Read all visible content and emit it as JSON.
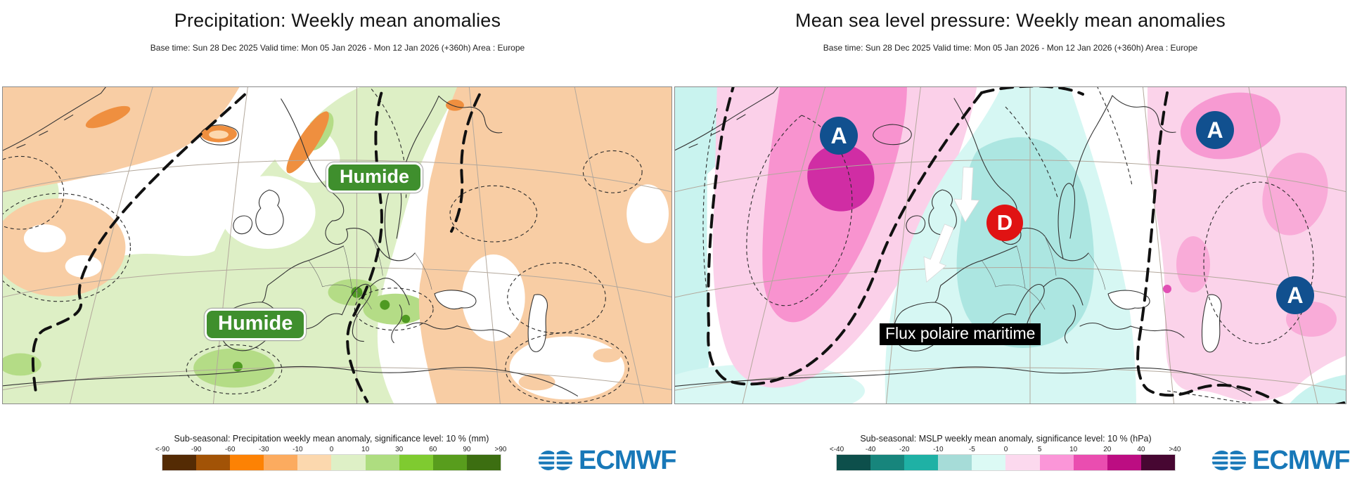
{
  "panels": [
    {
      "title": "Precipitation: Weekly mean anomalies",
      "subtitle": "Base time: Sun 28 Dec 2025 Valid time: Mon 05 Jan 2026 - Mon 12 Jan 2026 (+360h) Area : Europe",
      "annotations": [
        {
          "text": "Humide"
        },
        {
          "text": "Humide"
        }
      ],
      "legend": {
        "title": "Sub-seasonal: Precipitation weekly mean anomaly, significance level: 10 % (mm)",
        "unit": "mm",
        "ticks": [
          "<-90",
          "-90",
          "-60",
          "-30",
          "-10",
          "0",
          "10",
          "30",
          "60",
          "90",
          ">90"
        ],
        "colors": [
          "#542b04",
          "#a25306",
          "#fd8204",
          "#fcab5f",
          "#fcd8ae",
          "#def0c6",
          "#aedd80",
          "#7fcb30",
          "#589d1d",
          "#3c6e11"
        ]
      },
      "logo_text": "ECMWF"
    },
    {
      "title": "Mean sea level pressure: Weekly mean anomalies",
      "subtitle": "Base time: Sun 28 Dec 2025 Valid time: Mon 05 Jan 2026 - Mon 12 Jan 2026 (+360h) Area : Europe",
      "annotations": [
        {
          "text": "Flux polaire maritime"
        }
      ],
      "markers": [
        {
          "label": "A",
          "type": "anticyclone"
        },
        {
          "label": "A",
          "type": "anticyclone"
        },
        {
          "label": "A",
          "type": "anticyclone"
        },
        {
          "label": "D",
          "type": "depression"
        }
      ],
      "legend": {
        "title": "Sub-seasonal: MSLP weekly mean anomaly, significance level: 10 % (hPa)",
        "unit": "hPa",
        "ticks": [
          "<-40",
          "-40",
          "-20",
          "-10",
          "-5",
          "0",
          "5",
          "10",
          "20",
          "40",
          ">40"
        ],
        "colors": [
          "#0d4f4b",
          "#17857c",
          "#1fb1a5",
          "#a6dcd8",
          "#dcfaf5",
          "#fcd9ee",
          "#fb96d8",
          "#ea4db0",
          "#bc0d82",
          "#470732"
        ]
      },
      "logo_text": "ECMWF"
    }
  ],
  "colors": {
    "anticyclone_marker": "#11508f",
    "depression_marker": "#e01313",
    "annotation_green": "#3f8f2d",
    "logo_blue": "#1878b8"
  }
}
